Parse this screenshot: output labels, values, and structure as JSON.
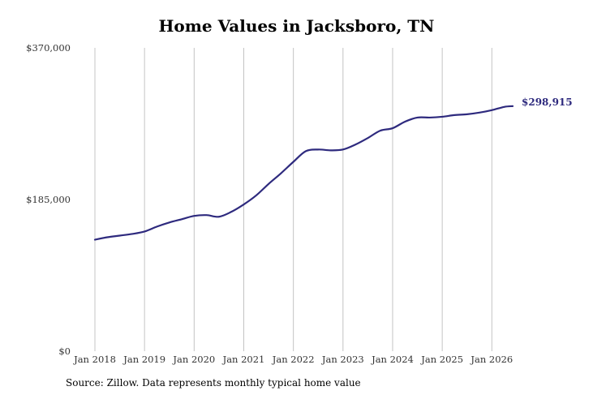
{
  "chart_data": {
    "type": "line",
    "title": "Home Values in Jacksboro, TN",
    "source": "Source: Zillow. Data represents monthly typical home value",
    "ylim": [
      0,
      370000
    ],
    "y_ticks": [
      {
        "value": 0,
        "label": "$0"
      },
      {
        "value": 185000,
        "label": "$185,000"
      },
      {
        "value": 370000,
        "label": "$370,000"
      }
    ],
    "x_ticks": [
      {
        "value": 2018,
        "label": "Jan 2018"
      },
      {
        "value": 2019,
        "label": "Jan 2019"
      },
      {
        "value": 2020,
        "label": "Jan 2020"
      },
      {
        "value": 2021,
        "label": "Jan 2021"
      },
      {
        "value": 2022,
        "label": "Jan 2022"
      },
      {
        "value": 2023,
        "label": "Jan 2023"
      },
      {
        "value": 2024,
        "label": "Jan 2024"
      },
      {
        "value": 2025,
        "label": "Jan 2025"
      },
      {
        "value": 2026,
        "label": "Jan 2026"
      }
    ],
    "xlim": [
      2018,
      2026.45
    ],
    "grid": "vertical",
    "line_color": "#2e2a7e",
    "end_label": "$298,915",
    "x": [
      2018.0,
      2018.25,
      2018.5,
      2018.75,
      2019.0,
      2019.25,
      2019.5,
      2019.75,
      2020.0,
      2020.25,
      2020.5,
      2020.75,
      2021.0,
      2021.25,
      2021.5,
      2021.75,
      2022.0,
      2022.25,
      2022.5,
      2022.75,
      2023.0,
      2023.25,
      2023.5,
      2023.75,
      2024.0,
      2024.25,
      2024.5,
      2024.75,
      2025.0,
      2025.25,
      2025.5,
      2025.75,
      2026.0,
      2026.25,
      2026.42
    ],
    "y": [
      136000,
      139000,
      141000,
      143000,
      146000,
      152000,
      157000,
      161000,
      165000,
      166000,
      164000,
      170000,
      179000,
      190000,
      204000,
      217000,
      231000,
      244000,
      246000,
      245000,
      246000,
      252000,
      260000,
      269000,
      272000,
      280000,
      285000,
      285000,
      286000,
      288000,
      289000,
      291000,
      294000,
      298000,
      298915
    ]
  }
}
